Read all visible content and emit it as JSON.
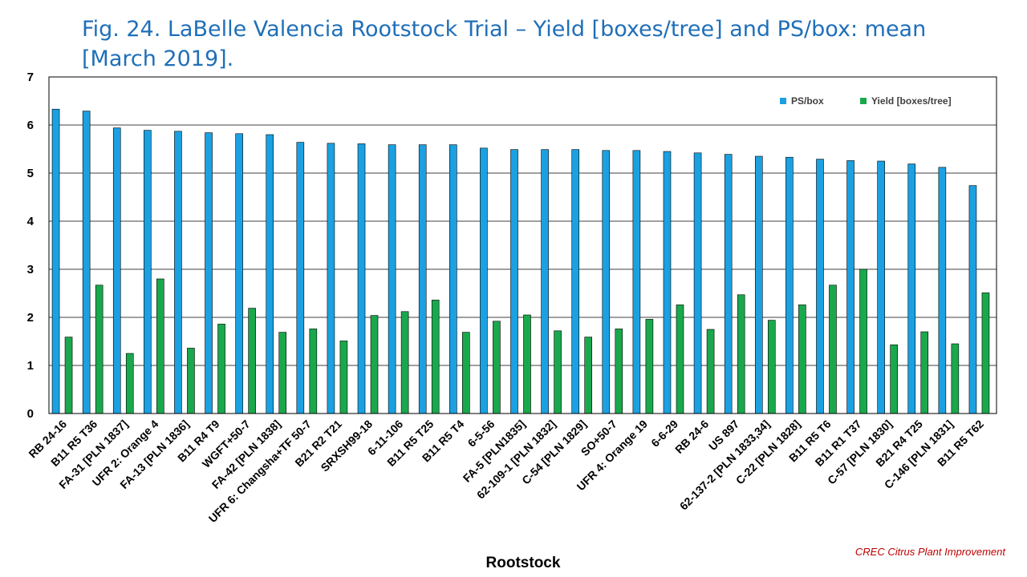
{
  "chart_data": {
    "type": "bar",
    "title": "Fig. 24. LaBelle Valencia Rootstock Trial – Yield [boxes/tree] and PS/box: mean [March 2019].",
    "xlabel": "Rootstock",
    "ylabel": "",
    "ylim": [
      0,
      7
    ],
    "yticks": [
      "0",
      "1",
      "2",
      "3",
      "4",
      "5",
      "6",
      "7"
    ],
    "grid": true,
    "legend_position": "top-right",
    "categories": [
      "RB 24-16",
      "B11 R5 T36",
      "FA-31 [PLN 1837]",
      "UFR 2: Orange 4",
      "FA-13 [PLN 1836]",
      "B11 R4 T9",
      "WGFT+50-7",
      "FA-42 [PLN 1838]",
      "UFR 6: Changsha+TF 50-7",
      "B21 R2 T21",
      "SRXSH99-18",
      "6-11-106",
      "B11 R5 T25",
      "B11 R5 T4",
      "6-5-56",
      "FA-5 [PLN1835]",
      "62-109-1 [PLN 1832]",
      "C-54 [PLN 1829]",
      "SO+50-7",
      "UFR 4: Orange 19",
      "6-6-29",
      "RB 24-6",
      "US 897",
      "62-137-2 [PLN 1833,34]",
      "C-22 [PLN 1828]",
      "B11 R5 T6",
      "B11 R1 T37",
      "C-57 [PLN 1830]",
      "B21 R4 T25",
      "C-146 [PLN 1831]",
      "B11 R5 T62"
    ],
    "series": [
      {
        "name": "PS/box",
        "color": "#1ba1e2",
        "values": [
          6.33,
          6.29,
          5.94,
          5.89,
          5.87,
          5.84,
          5.82,
          5.8,
          5.64,
          5.62,
          5.61,
          5.59,
          5.59,
          5.59,
          5.52,
          5.49,
          5.49,
          5.49,
          5.47,
          5.47,
          5.45,
          5.42,
          5.39,
          5.35,
          5.33,
          5.29,
          5.26,
          5.25,
          5.19,
          5.12,
          4.74
        ]
      },
      {
        "name": "Yield [boxes/tree]",
        "color": "#1aa84c",
        "values": [
          1.59,
          2.67,
          1.25,
          2.8,
          1.36,
          1.86,
          2.19,
          1.69,
          1.76,
          1.51,
          2.04,
          2.12,
          2.36,
          1.69,
          1.92,
          2.05,
          1.72,
          1.59,
          1.76,
          1.96,
          2.26,
          1.75,
          2.47,
          1.94,
          2.26,
          2.67,
          3.0,
          1.43,
          1.7,
          1.45,
          2.51
        ]
      }
    ]
  },
  "footer": {
    "credit": "CREC Citrus Plant Improvement"
  }
}
